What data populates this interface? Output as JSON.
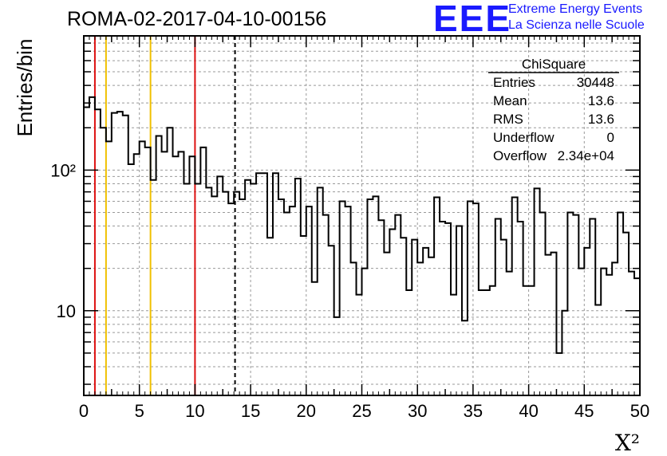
{
  "header": {
    "title": "ROMA-02-2017-04-10-00156",
    "logo_mark": "EEE",
    "logo_line1": "Extreme Energy Events",
    "logo_line2": "La Scienza nelle Scuole"
  },
  "stats_box": {
    "title": "ChiSquare",
    "rows": [
      {
        "label": "Entries",
        "value": "30448"
      },
      {
        "label": "Mean",
        "value": "13.6"
      },
      {
        "label": "RMS",
        "value": "13.6"
      },
      {
        "label": "Underflow",
        "value": "0"
      },
      {
        "label": "Overflow",
        "value": "2.34e+04"
      }
    ]
  },
  "colors": {
    "histogram": "#000000",
    "red_lines": "#dd1111",
    "yellow_lines": "#f0c000",
    "grid": "#999999"
  },
  "chart_data": {
    "type": "bar",
    "style": "step-histogram",
    "xlabel": "X²",
    "ylabel": "Entries/bin",
    "xlim": [
      0,
      50
    ],
    "ylim": [
      2.5,
      900
    ],
    "y_scale": "log",
    "grid": true,
    "x_ticks": [
      0,
      5,
      10,
      15,
      20,
      25,
      30,
      35,
      40,
      45,
      50
    ],
    "x_tick_labels": [
      "0",
      "5",
      "10",
      "15",
      "20",
      "25",
      "30",
      "35",
      "40",
      "45",
      "50"
    ],
    "y_ticks": [
      10,
      100
    ],
    "y_tick_labels": [
      "10",
      "10²"
    ],
    "bin_width": 0.5,
    "values": [
      280,
      330,
      270,
      200,
      160,
      255,
      260,
      245,
      110,
      130,
      160,
      145,
      85,
      175,
      135,
      200,
      125,
      135,
      80,
      125,
      80,
      145,
      75,
      65,
      90,
      70,
      58,
      70,
      62,
      85,
      80,
      95,
      95,
      33,
      95,
      62,
      50,
      55,
      87,
      34,
      55,
      16,
      75,
      48,
      29,
      9,
      60,
      55,
      22,
      13,
      20,
      62,
      65,
      44,
      26,
      38,
      48,
      33,
      14,
      32,
      22,
      28,
      24,
      64,
      43,
      42,
      13,
      40,
      8.5,
      60,
      58,
      14,
      14,
      15,
      45,
      32,
      19,
      64,
      43,
      15,
      15,
      74,
      50,
      25,
      26,
      5,
      10,
      50,
      48,
      20,
      28,
      45,
      11,
      20,
      18,
      22,
      50,
      36,
      19,
      17
    ],
    "vertical_lines": [
      {
        "x": 1,
        "color": "red"
      },
      {
        "x": 2,
        "color": "yellow"
      },
      {
        "x": 6,
        "color": "yellow"
      },
      {
        "x": 10,
        "color": "red"
      },
      {
        "x": 13.6,
        "color": "black",
        "dashed": true
      }
    ]
  }
}
